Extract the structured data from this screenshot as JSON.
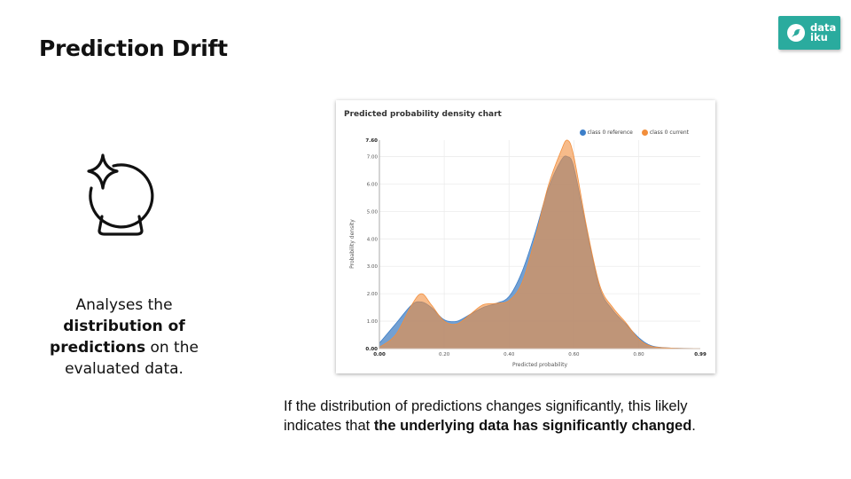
{
  "slide": {
    "title": "Prediction Drift"
  },
  "logo": {
    "line1": "data",
    "line2": "iku",
    "bg_color": "#2aab9e",
    "icon": "bird-icon"
  },
  "left_panel": {
    "icon": "crystal-ball-sparkle-icon",
    "text_1": "Analyses the",
    "text_bold_1": "distribution of",
    "text_bold_2": "predictions",
    "text_2": " on the",
    "text_3": "evaluated data."
  },
  "bottom_note": {
    "text_1": "If the distribution of predictions changes significantly, this likely",
    "text_2": "indicates that ",
    "text_bold": "the underlying data has significantly changed",
    "text_3": "."
  },
  "chart": {
    "title": "Predicted probability density chart",
    "legend": [
      {
        "label": "class 0 reference",
        "color": "#3d7fc9"
      },
      {
        "label": "class 0 current",
        "color": "#f28e3c"
      }
    ],
    "ylabel": "Probability density",
    "xlabel": "Predicted probability",
    "yticks": [
      "0.00",
      "1.00",
      "2.00",
      "3.00",
      "4.00",
      "5.00",
      "6.00",
      "7.00",
      "7.60"
    ],
    "xticks": [
      "0.00",
      "0.20",
      "0.40",
      "0.60",
      "0.80",
      "0.99"
    ]
  },
  "chart_data": {
    "type": "area",
    "title": "Predicted probability density chart",
    "xlabel": "Predicted probability",
    "ylabel": "Probability density",
    "xlim": [
      0.0,
      0.99
    ],
    "ylim": [
      0.0,
      7.6
    ],
    "grid": true,
    "legend_position": "top-right",
    "x": [
      0.0,
      0.05,
      0.1,
      0.13,
      0.16,
      0.2,
      0.24,
      0.28,
      0.32,
      0.36,
      0.4,
      0.44,
      0.48,
      0.52,
      0.56,
      0.58,
      0.6,
      0.64,
      0.68,
      0.72,
      0.76,
      0.8,
      0.84,
      0.9,
      0.99
    ],
    "series": [
      {
        "name": "class 0 reference",
        "color": "#3d7fc9",
        "values": [
          0.2,
          0.9,
          1.6,
          1.7,
          1.5,
          1.05,
          1.0,
          1.25,
          1.5,
          1.65,
          1.9,
          2.8,
          4.2,
          5.8,
          6.85,
          7.0,
          6.6,
          4.3,
          2.2,
          1.4,
          0.9,
          0.4,
          0.1,
          0.02,
          0.0
        ]
      },
      {
        "name": "class 0 current",
        "color": "#f28e3c",
        "values": [
          0.05,
          0.5,
          1.6,
          2.0,
          1.6,
          1.0,
          0.9,
          1.25,
          1.6,
          1.65,
          1.75,
          2.4,
          4.0,
          5.9,
          7.2,
          7.6,
          7.0,
          4.4,
          2.3,
          1.5,
          0.95,
          0.35,
          0.08,
          0.02,
          0.0
        ]
      }
    ]
  }
}
